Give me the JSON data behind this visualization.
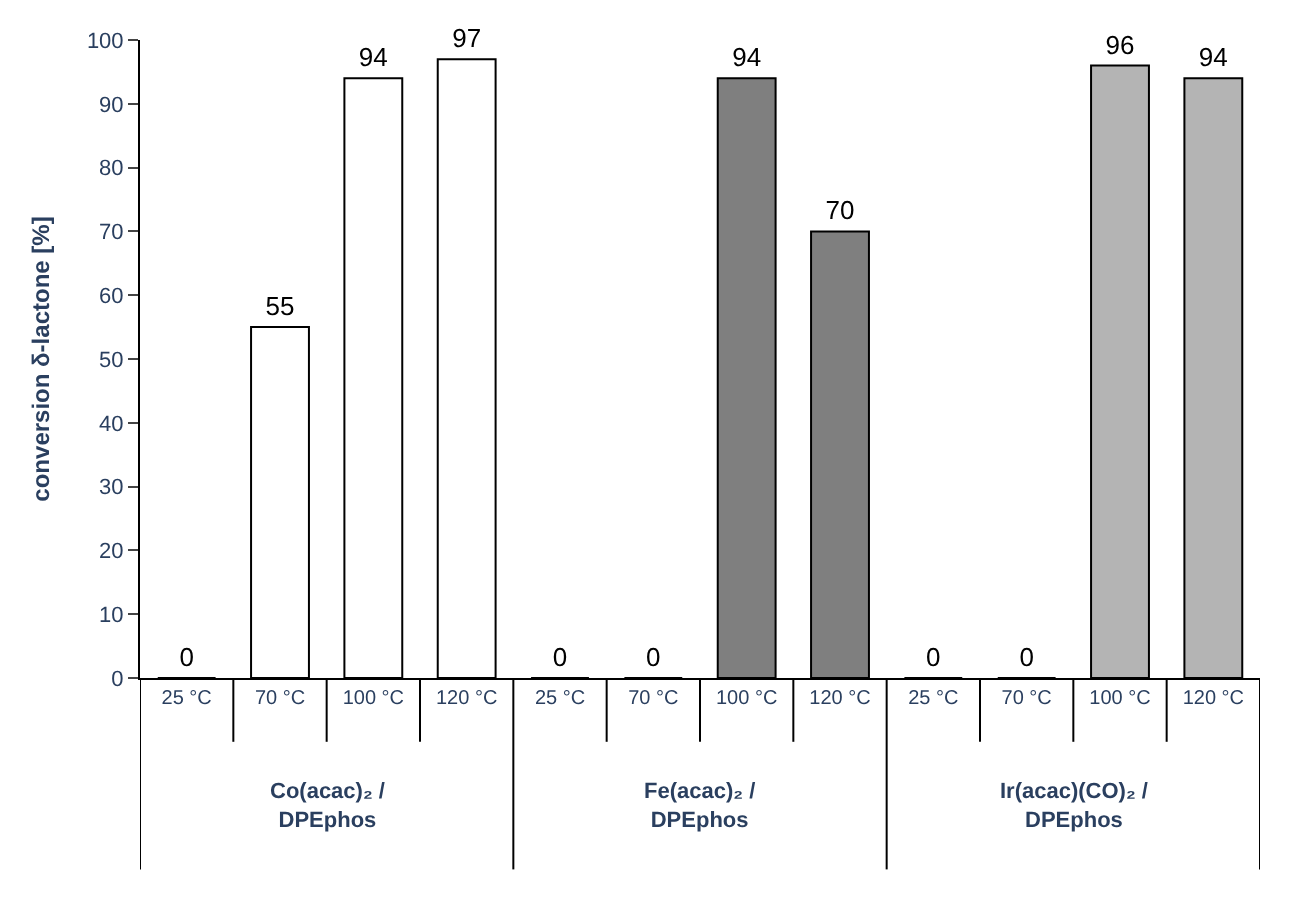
{
  "chart_data": {
    "type": "bar",
    "ylabel": "conversion δ-lactone [%]",
    "categories": [
      "25 °C",
      "70 °C",
      "100 °C",
      "120 °C",
      "25 °C",
      "70 °C",
      "100 °C",
      "120 °C",
      "25 °C",
      "70 °C",
      "100 °C",
      "120 °C"
    ],
    "values": [
      0,
      55,
      94,
      97,
      0,
      0,
      94,
      70,
      0,
      0,
      96,
      94
    ],
    "colors": [
      "#ffffff",
      "#ffffff",
      "#ffffff",
      "#ffffff",
      "#7f7f7f",
      "#7f7f7f",
      "#7f7f7f",
      "#7f7f7f",
      "#b4b4b4",
      "#b4b4b4",
      "#b4b4b4",
      "#b4b4b4"
    ],
    "annotations": [
      "Co(acac)₂ /\nDPEphos",
      "Fe(acac)₂ /\nDPEphos",
      "Ir(acac)(CO)₂ /\nDPEphos"
    ],
    "ylim": [
      0,
      100
    ],
    "yticks": [
      0,
      10,
      20,
      30,
      40,
      50,
      60,
      70,
      80,
      90,
      100
    ],
    "data_labels": true
  }
}
